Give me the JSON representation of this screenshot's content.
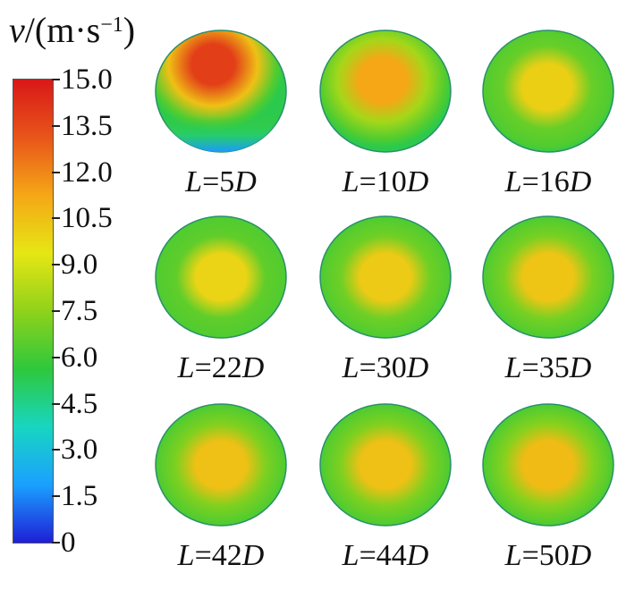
{
  "colorbar": {
    "title_var": "v",
    "title_unit": "/(m·s",
    "title_exp": "−1",
    "title_close": ")",
    "min": 0,
    "max": 15,
    "ticks": [
      "15.0",
      "13.5",
      "12.0",
      "10.5",
      "9.0",
      "7.5",
      "6.0",
      "4.5",
      "3.0",
      "1.5",
      "0"
    ],
    "colors": [
      "#1f1fd6",
      "#1aa0ff",
      "#18d6c0",
      "#2ec83c",
      "#8fd21a",
      "#e6e614",
      "#f5a716",
      "#e8551a",
      "#d81818"
    ]
  },
  "panels": [
    {
      "var": "L",
      "eq": "=5",
      "unit": "D",
      "level": 0.92,
      "skew": 1
    },
    {
      "var": "L",
      "eq": "=10",
      "unit": "D",
      "level": 0.75,
      "skew": 0.4
    },
    {
      "var": "L",
      "eq": "=16",
      "unit": "D",
      "level": 0.67,
      "skew": 0.15
    },
    {
      "var": "L",
      "eq": "=22",
      "unit": "D",
      "level": 0.66,
      "skew": 0
    },
    {
      "var": "L",
      "eq": "=30",
      "unit": "D",
      "level": 0.68,
      "skew": 0
    },
    {
      "var": "L",
      "eq": "=35",
      "unit": "D",
      "level": 0.69,
      "skew": 0
    },
    {
      "var": "L",
      "eq": "=42",
      "unit": "D",
      "level": 0.7,
      "skew": 0
    },
    {
      "var": "L",
      "eq": "=44",
      "unit": "D",
      "level": 0.7,
      "skew": 0
    },
    {
      "var": "L",
      "eq": "=50",
      "unit": "D",
      "level": 0.71,
      "skew": 0
    }
  ]
}
